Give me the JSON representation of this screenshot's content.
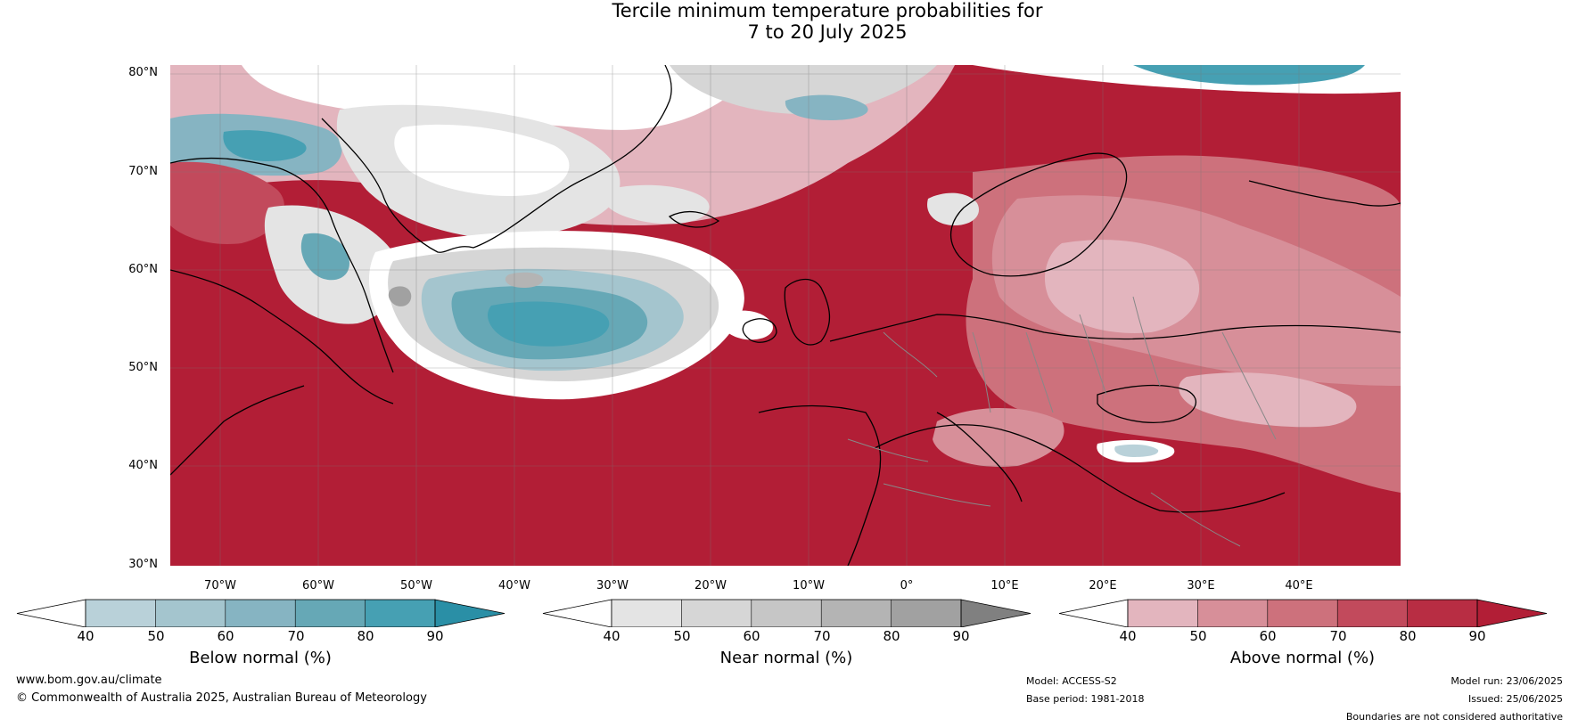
{
  "title_line1": "Tercile minimum temperature probabilities for",
  "title_line2": "7 to 20 July 2025",
  "map": {
    "lat_labels": [
      "80°N",
      "70°N",
      "60°N",
      "50°N",
      "40°N",
      "30°N"
    ],
    "lon_labels": [
      "70°W",
      "60°W",
      "50°W",
      "40°W",
      "30°W",
      "20°W",
      "10°W",
      "0°",
      "10°E",
      "20°E",
      "30°E",
      "40°E"
    ],
    "background_color": "#b21e36",
    "border_color": "#888888",
    "coast_color": "#000000"
  },
  "legends": [
    {
      "caption": "Below normal (%)",
      "ticks": [
        "40",
        "50",
        "60",
        "70",
        "80",
        "90"
      ],
      "colors": [
        "#ffffff",
        "#b9d1d9",
        "#a4c5ce",
        "#86b4c2",
        "#66a8b6",
        "#46a0b3",
        "#2a8fa6"
      ]
    },
    {
      "caption": "Near normal (%)",
      "ticks": [
        "40",
        "50",
        "60",
        "70",
        "80",
        "90"
      ],
      "colors": [
        "#ffffff",
        "#e4e4e4",
        "#d6d6d6",
        "#c6c6c6",
        "#b4b4b4",
        "#a1a1a1",
        "#808080"
      ]
    },
    {
      "caption": "Above normal (%)",
      "ticks": [
        "40",
        "50",
        "60",
        "70",
        "80",
        "90"
      ],
      "colors": [
        "#ffffff",
        "#e3b5be",
        "#d78f99",
        "#cd717c",
        "#c24a5c",
        "#b82d43",
        "#b21e36"
      ]
    }
  ],
  "footer": {
    "website": "www.bom.gov.au/climate",
    "copyright": "© Commonwealth of Australia 2025, Australian Bureau of Meteorology",
    "model": "Model: ACCESS-S2",
    "base_period": "Base period: 1981-2018",
    "model_run": "Model run: 23/06/2025",
    "issued": "Issued: 25/06/2025",
    "disclaimer": "Boundaries are not considered authoritative"
  }
}
